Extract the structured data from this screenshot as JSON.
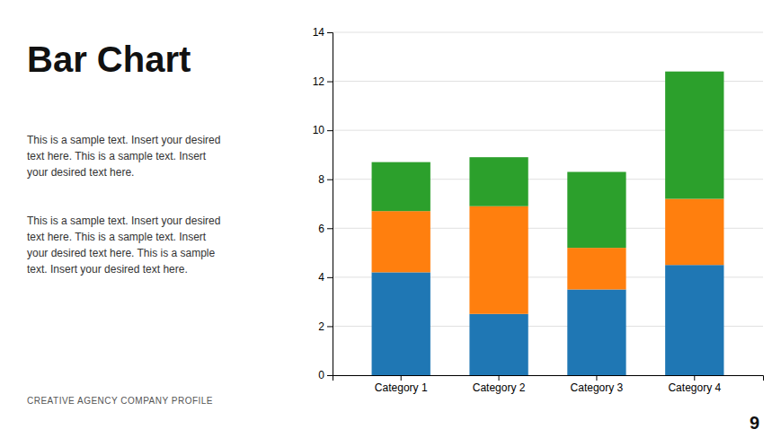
{
  "chart_data": {
    "type": "bar",
    "stacked": true,
    "grid": true,
    "title": "Bar Chart",
    "annotations": [
      "This is a sample text. Insert your desired\ntext here. This is a sample text. Insert\nyour desired text here.",
      "This is a sample text. Insert your desired\ntext here. This is a sample text. Insert\nyour desired text here. This is a sample\ntext. Insert your desired text here.",
      "CREATIVE AGENCY COMPANY PROFILE",
      "9"
    ],
    "categories": [
      "Category 1",
      "Category 2",
      "Category 3",
      "Category 4"
    ],
    "series": [
      {
        "values": [
          4.2,
          2.5,
          3.5,
          4.5
        ]
      },
      {
        "values": [
          2.5,
          4.4,
          1.7,
          2.7
        ]
      },
      {
        "values": [
          2.0,
          2.0,
          3.1,
          5.2
        ]
      }
    ],
    "ylim": [
      0,
      14
    ],
    "yticks": [
      0,
      2,
      4,
      6,
      8,
      10,
      12,
      14
    ]
  }
}
